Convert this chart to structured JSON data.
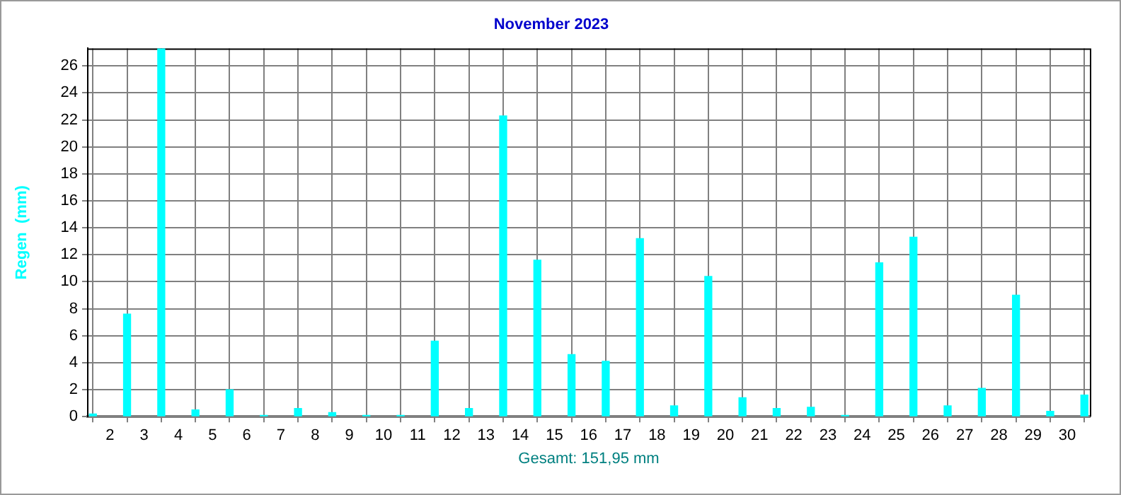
{
  "chart_data": {
    "type": "bar",
    "title": "November 2023",
    "xlabel": "Gesamt: 151,95 mm",
    "ylabel": "Regen  (mm)",
    "x": [
      1.5,
      2.5,
      3.5,
      4.5,
      5.5,
      6.5,
      7.5,
      8.5,
      9.5,
      10.5,
      11.5,
      12.5,
      13.5,
      14.5,
      15.5,
      16.5,
      17.5,
      18.5,
      19.5,
      20.5,
      21.5,
      22.5,
      23.5,
      24.5,
      25.5,
      26.5,
      27.5,
      28.5,
      29.5,
      30.5
    ],
    "values": [
      0.2,
      7.6,
      27.3,
      0.5,
      2.0,
      0.1,
      0.6,
      0.3,
      0.1,
      0.1,
      5.6,
      0.6,
      22.3,
      11.6,
      4.6,
      4.1,
      13.2,
      0.8,
      10.4,
      1.4,
      0.6,
      0.7,
      0.1,
      11.4,
      13.3,
      0.8,
      2.1,
      9.0,
      0.4,
      1.6
    ],
    "color": "#00ffff",
    "xlim": [
      1.35,
      30.66
    ],
    "xticks": [
      2,
      3,
      4,
      5,
      6,
      7,
      8,
      9,
      10,
      11,
      12,
      13,
      14,
      15,
      16,
      17,
      18,
      19,
      20,
      21,
      22,
      23,
      24,
      25,
      26,
      27,
      28,
      29,
      30
    ],
    "ylim": [
      0,
      27.3
    ],
    "yticks": [
      0,
      2,
      4,
      6,
      8,
      10,
      12,
      14,
      16,
      18,
      20,
      22,
      24,
      26
    ],
    "grid": true,
    "legend": false
  }
}
